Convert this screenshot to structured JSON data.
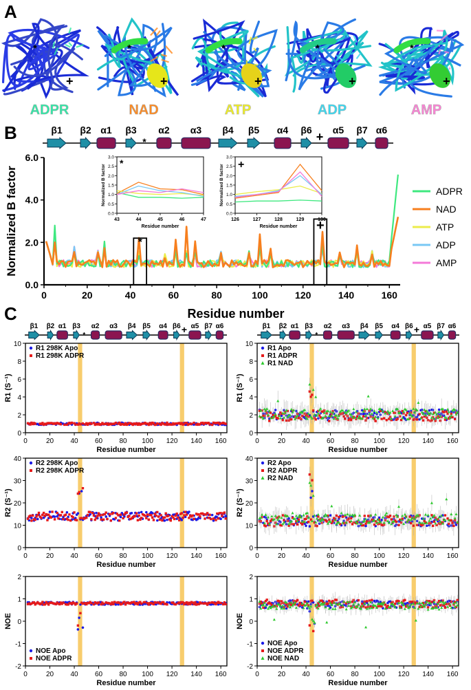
{
  "panel_letters": {
    "a": "A",
    "b": "B",
    "c": "C"
  },
  "panel_a": {
    "ligands": [
      {
        "name": "ADPR",
        "color": "#2ee8a6"
      },
      {
        "name": "NAD",
        "color": "#ff8a1f"
      },
      {
        "name": "ATP",
        "color": "#f0f020"
      },
      {
        "name": "ADP",
        "color": "#36d9f2"
      },
      {
        "name": "AMP",
        "color": "#ff7fd6"
      }
    ],
    "star_marker": "*",
    "plus_marker": "+"
  },
  "topology": {
    "labels": [
      "β1",
      "β2",
      "α1",
      "β3",
      "*",
      "α2",
      "α3",
      "β4",
      "β5",
      "α4",
      "β6",
      "+",
      "α5",
      "β7",
      "α6"
    ],
    "small_labels": [
      "β1",
      "β2",
      "α1",
      "β3",
      "*",
      "α2",
      "α3",
      "β4",
      "β5",
      "α4",
      "β6",
      "+",
      "α5",
      "β7",
      "α6"
    ]
  },
  "chart_data": [
    {
      "id": "b-main",
      "type": "line",
      "title": "",
      "xlabel": "Residue number",
      "ylabel": "Normalized B factor",
      "xlim": [
        0,
        165
      ],
      "ylim": [
        0,
        6
      ],
      "xticks": [
        "0",
        "20",
        "40",
        "60",
        "80",
        "100",
        "120",
        "140",
        "160"
      ],
      "yticks": [
        "0.0",
        "2.0",
        "4.0",
        "6.0"
      ],
      "legend": [
        "ADPR",
        "NAD",
        "ATP",
        "ADP",
        "AMP"
      ],
      "colors": [
        "#3ee87f",
        "#f77f1e",
        "#ecec4a",
        "#78c8f4",
        "#f47ad8"
      ],
      "series_note": "x = 1..164 residues; values for ADPR, NAD, ATP, ADP, AMP",
      "highlight_boxes": [
        "*",
        "+"
      ]
    },
    {
      "id": "b-inset-star",
      "type": "line",
      "xlabel": "Residue number",
      "ylabel": "Normalized B factor",
      "x": [
        43,
        44,
        45,
        46,
        47
      ],
      "xticks": [
        "43",
        "44",
        "45",
        "46",
        "47"
      ],
      "yticks": [
        "0.0",
        "0.5",
        "1.0",
        "1.5",
        "2.0",
        "2.5",
        "3.0"
      ],
      "ylim": [
        0,
        3
      ],
      "marker": "*",
      "series": [
        {
          "name": "ADPR",
          "values": [
            1.1,
            0.85,
            0.85,
            0.8,
            0.85
          ]
        },
        {
          "name": "NAD",
          "values": [
            1.05,
            1.65,
            1.3,
            1.25,
            1.0
          ]
        },
        {
          "name": "ATP",
          "values": [
            1.2,
            1.05,
            1.0,
            1.05,
            0.95
          ]
        },
        {
          "name": "ADP",
          "values": [
            1.0,
            1.45,
            1.2,
            1.1,
            0.9
          ]
        },
        {
          "name": "AMP",
          "values": [
            1.0,
            1.2,
            1.1,
            1.3,
            1.1
          ]
        }
      ]
    },
    {
      "id": "b-inset-plus",
      "type": "line",
      "xlabel": "Residue number",
      "ylabel": "Normalized B factor",
      "x": [
        126,
        127,
        128,
        129,
        130
      ],
      "xticks": [
        "126",
        "127",
        "128",
        "129",
        "130"
      ],
      "yticks": [
        "0.0",
        "0.5",
        "1.0",
        "1.5",
        "2.0",
        "2.5",
        "3.0"
      ],
      "ylim": [
        0,
        3
      ],
      "marker": "+",
      "series": [
        {
          "name": "ADPR",
          "values": [
            0.6,
            0.65,
            0.65,
            0.7,
            0.65
          ]
        },
        {
          "name": "NAD",
          "values": [
            0.8,
            0.95,
            1.1,
            2.6,
            1.2
          ]
        },
        {
          "name": "ATP",
          "values": [
            1.0,
            1.15,
            1.25,
            1.45,
            1.05
          ]
        },
        {
          "name": "ADP",
          "values": [
            0.9,
            1.0,
            1.2,
            2.0,
            1.0
          ]
        },
        {
          "name": "AMP",
          "values": [
            0.85,
            1.0,
            1.15,
            2.2,
            0.9
          ]
        }
      ]
    },
    {
      "id": "c-r1-left",
      "type": "scatter",
      "xlabel": "Residue number",
      "ylabel": "R1 (S⁻¹)",
      "ylim": [
        0,
        10
      ],
      "yticks": [
        "0",
        "2",
        "4",
        "6",
        "8",
        "10"
      ],
      "xticks": [
        "0",
        "20",
        "40",
        "60",
        "80",
        "100",
        "120",
        "140",
        "160"
      ],
      "legend": [
        "R1 298K Apo",
        "R1 298K ADPR"
      ],
      "colors": [
        "#1a1ae6",
        "#e61a1a"
      ],
      "base": [
        1.0,
        1.0
      ],
      "noise": 0.12
    },
    {
      "id": "c-r1-right",
      "type": "scatter",
      "xlabel": "Residue number",
      "ylabel": "R1 (S⁻¹)",
      "ylim": [
        0,
        10
      ],
      "yticks": [
        "0",
        "2",
        "4",
        "6",
        "8",
        "10"
      ],
      "xticks": [
        "0",
        "20",
        "40",
        "60",
        "80",
        "100",
        "120",
        "140",
        "160"
      ],
      "legend": [
        "R1 Apo",
        "R1 ADPR",
        "R1 NAD"
      ],
      "colors": [
        "#1a1ae6",
        "#e61a1a",
        "#2ec92e"
      ],
      "base": [
        2.0,
        1.9,
        2.1
      ],
      "noise": 0.6
    },
    {
      "id": "c-r2-left",
      "type": "scatter",
      "xlabel": "Residue number",
      "ylabel": "R2 (S⁻¹)",
      "ylim": [
        0,
        40
      ],
      "yticks": [
        "0",
        "10",
        "20",
        "30",
        "40"
      ],
      "xticks": [
        "0",
        "20",
        "40",
        "60",
        "80",
        "100",
        "120",
        "140",
        "160"
      ],
      "legend": [
        "R2 298K Apo",
        "R2 298K ADPR"
      ],
      "colors": [
        "#1a1ae6",
        "#e61a1a"
      ],
      "base": [
        14,
        14
      ],
      "noise": 2.0
    },
    {
      "id": "c-r2-right",
      "type": "scatter",
      "xlabel": "Residue number",
      "ylabel": "R2 (S⁻¹)",
      "ylim": [
        0,
        40
      ],
      "yticks": [
        "0",
        "10",
        "20",
        "30",
        "40"
      ],
      "xticks": [
        "0",
        "20",
        "40",
        "60",
        "80",
        "100",
        "120",
        "140",
        "160"
      ],
      "legend": [
        "R2 Apo",
        "R2 ADPR",
        "R2 NAD"
      ],
      "colors": [
        "#1a1ae6",
        "#e61a1a",
        "#2ec92e"
      ],
      "base": [
        12,
        12,
        13
      ],
      "noise": 2.5
    },
    {
      "id": "c-noe-left",
      "type": "scatter",
      "xlabel": "Residue number",
      "ylabel": "NOE",
      "ylim": [
        -2,
        2
      ],
      "yticks": [
        "-2",
        "-1",
        "0",
        "1",
        "2"
      ],
      "xticks": [
        "0",
        "20",
        "40",
        "60",
        "80",
        "100",
        "120",
        "140",
        "160"
      ],
      "legend": [
        "NOE Apo",
        "NOE ADPR"
      ],
      "colors": [
        "#1a1ae6",
        "#e61a1a"
      ],
      "base": [
        0.8,
        0.8
      ],
      "noise": 0.06
    },
    {
      "id": "c-noe-right",
      "type": "scatter",
      "xlabel": "Residue number",
      "ylabel": "NOE",
      "ylim": [
        -2,
        2
      ],
      "yticks": [
        "-2",
        "-1",
        "0",
        "1",
        "2"
      ],
      "xticks": [
        "0",
        "20",
        "40",
        "60",
        "80",
        "100",
        "120",
        "140",
        "160"
      ],
      "legend": [
        "NOE Apo",
        "NOE ADPR",
        "NOE NAD"
      ],
      "colors": [
        "#1a1ae6",
        "#e61a1a",
        "#2ec92e"
      ],
      "base": [
        0.75,
        0.78,
        0.7
      ],
      "noise": 0.18
    }
  ]
}
